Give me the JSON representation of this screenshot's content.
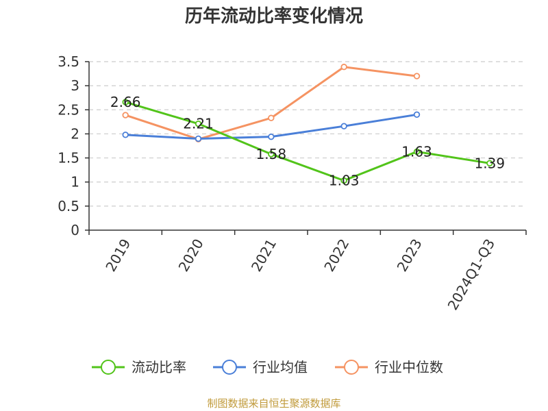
{
  "chart_data": {
    "type": "line",
    "title": "历年流动比率变化情况",
    "categories": [
      "2019",
      "2020",
      "2021",
      "2022",
      "2023",
      "2024Q1-Q3"
    ],
    "ylim": [
      0,
      3.5
    ],
    "yticks": [
      "0",
      "0.5",
      "1",
      "1.5",
      "2",
      "2.5",
      "3",
      "3.5"
    ],
    "grid": true,
    "legend_position": "bottom",
    "series": [
      {
        "name": "流动比率",
        "color": "#52c41a",
        "values": [
          2.66,
          2.21,
          1.58,
          1.03,
          1.63,
          1.39
        ],
        "labels": [
          "2.66",
          "2.21",
          "1.58",
          "1.03",
          "1.63",
          "1.39"
        ]
      },
      {
        "name": "行业均值",
        "color": "#4a7fd8",
        "values": [
          1.98,
          1.9,
          1.94,
          2.16,
          2.4,
          null
        ]
      },
      {
        "name": "行业中位数",
        "color": "#f59362",
        "values": [
          2.39,
          1.89,
          2.33,
          3.39,
          3.2,
          null
        ]
      }
    ],
    "source": "制图数据来自恒生聚源数据库"
  }
}
